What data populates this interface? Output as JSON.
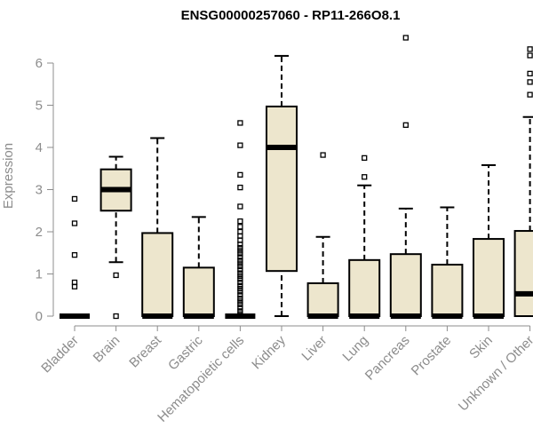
{
  "chart_data": {
    "type": "boxplot",
    "title": "ENSG00000257060 - RP11-266O8.1",
    "xlabel": "",
    "ylabel": "Expression",
    "ylim": [
      0,
      6.4
    ],
    "yticks": [
      0,
      1,
      2,
      3,
      4,
      5,
      6
    ],
    "grid": false,
    "legend": "none",
    "colors": {
      "box_fill": "#ede6cd",
      "box_stroke": "#000000",
      "axis": "#8c8c8c",
      "text": "#8c8c8c",
      "title": "#000000"
    },
    "categories": [
      "Bladder",
      "Brain",
      "Breast",
      "Gastric",
      "Hematopoietic cells",
      "Kidney",
      "Liver",
      "Lung",
      "Pancreas",
      "Prostate",
      "Skin",
      "Unknown / Other"
    ],
    "boxes": [
      {
        "category": "Bladder",
        "min": 0,
        "q1": 0,
        "median": 0,
        "q3": 0,
        "max": 0,
        "outliers": [
          0.7,
          0.8,
          1.45,
          2.2,
          2.78
        ]
      },
      {
        "category": "Brain",
        "min": 1.28,
        "q1": 2.5,
        "median": 3.0,
        "q3": 3.48,
        "max": 3.78,
        "outliers": [
          0,
          0.97
        ]
      },
      {
        "category": "Breast",
        "min": 0,
        "q1": 0,
        "median": 0,
        "q3": 1.97,
        "max": 4.22,
        "outliers": []
      },
      {
        "category": "Gastric",
        "min": 0,
        "q1": 0,
        "median": 0,
        "q3": 1.15,
        "max": 2.35,
        "outliers": []
      },
      {
        "category": "Hematopoietic cells",
        "min": 0,
        "q1": 0,
        "median": 0,
        "q3": 0,
        "max": 0,
        "outliers": [
          0.05,
          0.12,
          0.2,
          0.28,
          0.35,
          0.42,
          0.5,
          0.58,
          0.65,
          0.72,
          0.8,
          0.88,
          0.95,
          1.02,
          1.1,
          1.18,
          1.25,
          1.32,
          1.4,
          1.48,
          1.55,
          1.62,
          1.7,
          1.8,
          1.9,
          2.0,
          2.12,
          2.25,
          2.6,
          3.05,
          3.35,
          4.05,
          4.58
        ]
      },
      {
        "category": "Kidney",
        "min": 0,
        "q1": 1.07,
        "median": 4.0,
        "q3": 4.97,
        "max": 6.17,
        "outliers": []
      },
      {
        "category": "Liver",
        "min": 0,
        "q1": 0,
        "median": 0,
        "q3": 0.78,
        "max": 1.88,
        "outliers": [
          3.82
        ]
      },
      {
        "category": "Lung",
        "min": 0,
        "q1": 0,
        "median": 0,
        "q3": 1.33,
        "max": 3.1,
        "outliers": [
          3.3,
          3.75
        ]
      },
      {
        "category": "Pancreas",
        "min": 0,
        "q1": 0,
        "median": 0,
        "q3": 1.47,
        "max": 2.55,
        "outliers": [
          4.53,
          6.6
        ]
      },
      {
        "category": "Prostate",
        "min": 0,
        "q1": 0,
        "median": 0,
        "q3": 1.22,
        "max": 2.58,
        "outliers": []
      },
      {
        "category": "Skin",
        "min": 0,
        "q1": 0,
        "median": 0,
        "q3": 1.83,
        "max": 3.58,
        "outliers": []
      },
      {
        "category": "Unknown / Other",
        "min": 0,
        "q1": 0,
        "median": 0.53,
        "q3": 2.02,
        "max": 4.72,
        "outliers": [
          5.25,
          5.55,
          5.75,
          6.18,
          6.33
        ]
      }
    ]
  }
}
